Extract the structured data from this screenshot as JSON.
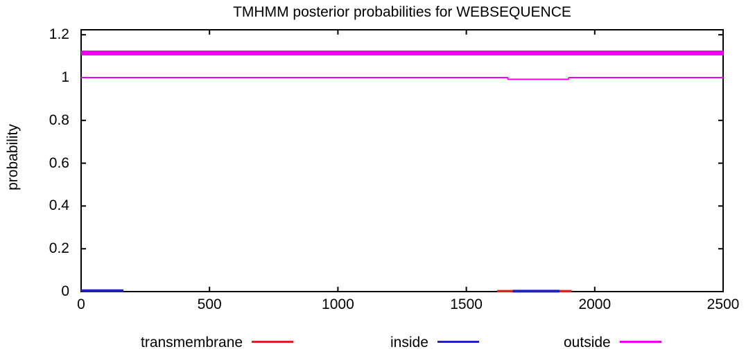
{
  "chart_data": {
    "type": "line",
    "title": "TMHMM posterior probabilities for WEBSEQUENCE",
    "xlabel": "",
    "ylabel": "probability",
    "xlim": [
      0,
      2500
    ],
    "ylim": [
      0,
      1.2
    ],
    "xticks": [
      0,
      500,
      1000,
      1500,
      2000,
      2500
    ],
    "yticks": [
      0,
      0.2,
      0.4,
      0.6,
      0.8,
      1,
      1.2
    ],
    "grid": false,
    "legend_position": "bottom",
    "background_color": "#ffffff",
    "axis_color": "#000000",
    "series": [
      {
        "name": "transmembrane",
        "color": "#dd2222",
        "polylines": [
          [
            [
              1620,
              0.002
            ],
            [
              1680,
              0.002
            ]
          ],
          [
            [
              1863,
              0.002
            ],
            [
              1910,
              0.002
            ]
          ]
        ]
      },
      {
        "name": "inside",
        "color": "#2222bb",
        "polylines": [
          [
            [
              0,
              0.004
            ],
            [
              165,
              0.004
            ]
          ],
          [
            [
              1680,
              0.002
            ],
            [
              1863,
              0.002
            ]
          ]
        ]
      },
      {
        "name": "outside",
        "color": "#ee00ee",
        "polylines": [
          [
            [
              0,
              1
            ],
            [
              1660,
              1
            ],
            [
              1663,
              0.992
            ],
            [
              1897,
              0.992
            ],
            [
              1900,
              1
            ],
            [
              2500,
              1
            ]
          ]
        ]
      }
    ],
    "prediction_bar": {
      "label": "outside",
      "color": "#ee00ee",
      "y": 1.115,
      "x_start": 0,
      "x_end": 2500
    }
  }
}
